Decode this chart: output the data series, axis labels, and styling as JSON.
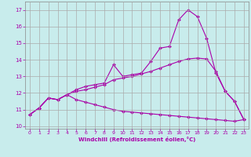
{
  "xlabel": "Windchill (Refroidissement éolien,°C)",
  "bg_color": "#c8ecec",
  "line_color": "#aa00aa",
  "grid_color": "#aaaaaa",
  "xlim": [
    -0.5,
    23.5
  ],
  "ylim": [
    9.85,
    17.5
  ],
  "yticks": [
    10,
    11,
    12,
    13,
    14,
    15,
    16,
    17
  ],
  "xticks": [
    0,
    1,
    2,
    3,
    4,
    5,
    6,
    7,
    8,
    9,
    10,
    11,
    12,
    13,
    14,
    15,
    16,
    17,
    18,
    19,
    20,
    21,
    22,
    23
  ],
  "line1_x": [
    0,
    1,
    2,
    3,
    4,
    5,
    6,
    7,
    8,
    9,
    10,
    11,
    12,
    13,
    14,
    15,
    16,
    17,
    18,
    19,
    20,
    21,
    22,
    23
  ],
  "line1_y": [
    10.7,
    11.1,
    11.7,
    11.6,
    11.9,
    12.2,
    12.4,
    12.5,
    12.6,
    13.7,
    13.0,
    13.1,
    13.2,
    13.9,
    14.7,
    14.8,
    16.4,
    17.0,
    16.6,
    15.3,
    13.2,
    12.1,
    11.5,
    10.4
  ],
  "line2_x": [
    0,
    1,
    2,
    3,
    4,
    5,
    6,
    7,
    8,
    9,
    10,
    11,
    12,
    13,
    14,
    15,
    16,
    17,
    18,
    19,
    20,
    21,
    22,
    23
  ],
  "line2_y": [
    10.7,
    11.1,
    11.7,
    11.6,
    11.9,
    12.1,
    12.2,
    12.35,
    12.5,
    12.8,
    12.9,
    13.0,
    13.15,
    13.3,
    13.5,
    13.7,
    13.9,
    14.05,
    14.1,
    14.05,
    13.3,
    12.1,
    11.5,
    10.4
  ],
  "line3_x": [
    0,
    1,
    2,
    3,
    4,
    5,
    6,
    7,
    8,
    9,
    10,
    11,
    12,
    13,
    14,
    15,
    16,
    17,
    18,
    19,
    20,
    21,
    22,
    23
  ],
  "line3_y": [
    10.7,
    11.1,
    11.7,
    11.6,
    11.9,
    11.6,
    11.45,
    11.3,
    11.15,
    11.0,
    10.9,
    10.85,
    10.8,
    10.75,
    10.7,
    10.65,
    10.6,
    10.55,
    10.5,
    10.45,
    10.4,
    10.35,
    10.3,
    10.4
  ]
}
